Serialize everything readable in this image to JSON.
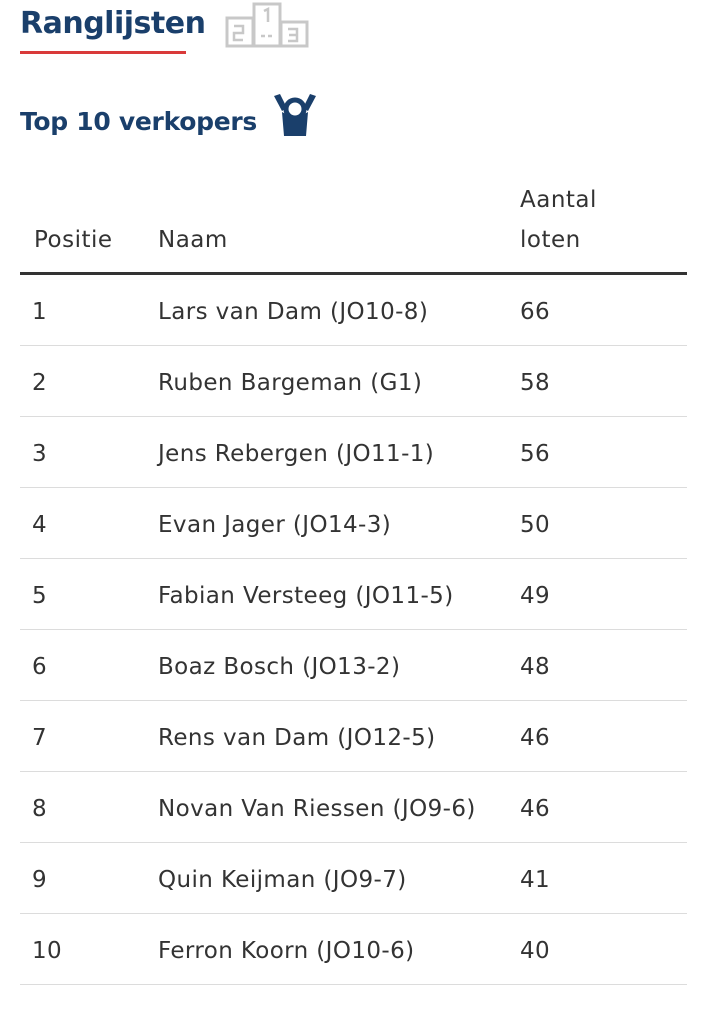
{
  "header": {
    "title": "Ranglijsten",
    "icon": "podium-icon",
    "accent_color": "#d93a3a",
    "title_color": "#1a3f6b"
  },
  "section": {
    "title": "Top 10 verkopers",
    "icon": "trophy-person-icon"
  },
  "table": {
    "columns": {
      "position": "Positie",
      "name": "Naam",
      "count_line1": "Aantal",
      "count_line2": "loten"
    },
    "rows": [
      {
        "position": "1",
        "name": "Lars van Dam (JO10-8)",
        "count": "66"
      },
      {
        "position": "2",
        "name": "Ruben Bargeman (G1)",
        "count": "58"
      },
      {
        "position": "3",
        "name": "Jens Rebergen (JO11-1)",
        "count": "56"
      },
      {
        "position": "4",
        "name": "Evan Jager (JO14-3)",
        "count": "50"
      },
      {
        "position": "5",
        "name": "Fabian Versteeg (JO11-5)",
        "count": "49"
      },
      {
        "position": "6",
        "name": "Boaz Bosch (JO13-2)",
        "count": "48"
      },
      {
        "position": "7",
        "name": "Rens van Dam (JO12-5)",
        "count": "46"
      },
      {
        "position": "8",
        "name": "Novan Van Riessen (JO9-6)",
        "count": "46"
      },
      {
        "position": "9",
        "name": "Quin Keijman (JO9-7)",
        "count": "41"
      },
      {
        "position": "10",
        "name": "Ferron Koorn (JO10-6)",
        "count": "40"
      }
    ]
  }
}
